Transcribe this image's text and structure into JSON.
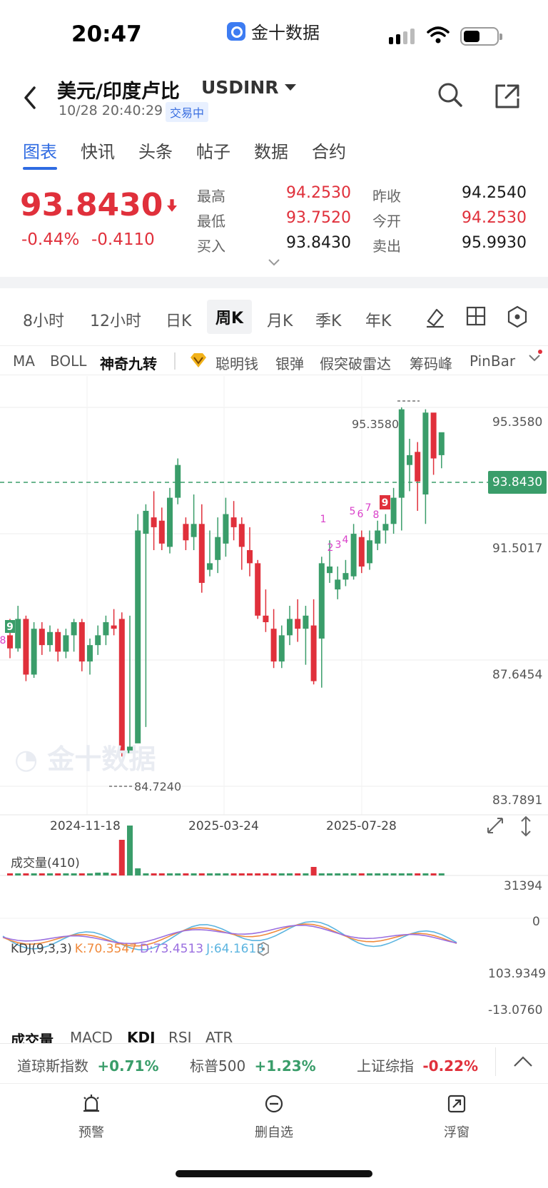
{
  "status_bar": {
    "time": "20:47",
    "app_name": "金十数据"
  },
  "header": {
    "title": "美元/印度卢比",
    "symbol": "USDINR",
    "timestamp": "10/28 20:40:29",
    "trade_status": "交易中"
  },
  "tabs": [
    "图表",
    "快讯",
    "头条",
    "帖子",
    "数据",
    "合约"
  ],
  "quote": {
    "price": "93.8430",
    "change_pct": "-0.44%",
    "change_abs": "-0.4110",
    "high_label": "最高",
    "high": "94.2530",
    "low_label": "最低",
    "low": "93.7520",
    "bid_label": "买入",
    "bid": "93.8430",
    "prev_close_label": "昨收",
    "prev_close": "94.2540",
    "open_label": "今开",
    "open": "94.2530",
    "ask_label": "卖出",
    "ask": "95.9930"
  },
  "periods": [
    "8小时",
    "12小时",
    "日K",
    "周K",
    "月K",
    "季K",
    "年K"
  ],
  "indicators": [
    "MA",
    "BOLL",
    "神奇九转",
    "聪明钱",
    "银弹",
    "假突破雷达",
    "筹码峰",
    "PinBar"
  ],
  "chart": {
    "price_axis": [
      "95.3580",
      "91.5017",
      "87.6454",
      "83.7891"
    ],
    "current_price_tag": "93.8430",
    "high_marker": "95.3580",
    "low_marker": "84.7240",
    "dates": [
      "2024-11-18",
      "2025-03-24",
      "2025-07-28"
    ],
    "volume_label": "成交量(410)",
    "volume_axis": [
      "31394",
      "0"
    ],
    "kdj_label": "KDJ(9,3,3)",
    "kdj_k": "K:70.3547",
    "kdj_d": "D:73.4513",
    "kdj_j": "J:64.1613",
    "kdj_axis": [
      "103.9349",
      "-13.0760"
    ],
    "colors": {
      "up": "#3a9d6a",
      "down": "#e0303b",
      "k": "#f08a3c",
      "d": "#9a6fe0",
      "j": "#5bb4e0"
    }
  },
  "bottom_tabs": [
    "成交量",
    "MACD",
    "KDJ",
    "RSI",
    "ATR"
  ],
  "ticker": [
    {
      "name": "道琼斯指数",
      "value": "+0.71%"
    },
    {
      "name": "标普500",
      "value": "+1.23%"
    },
    {
      "name": "上证综指",
      "value": "-0.22%"
    }
  ],
  "nav": [
    {
      "label": "预警",
      "icon": "alarm-icon"
    },
    {
      "label": "删自选",
      "icon": "remove-watchlist-icon"
    },
    {
      "label": "浮窗",
      "icon": "float-window-icon"
    }
  ]
}
